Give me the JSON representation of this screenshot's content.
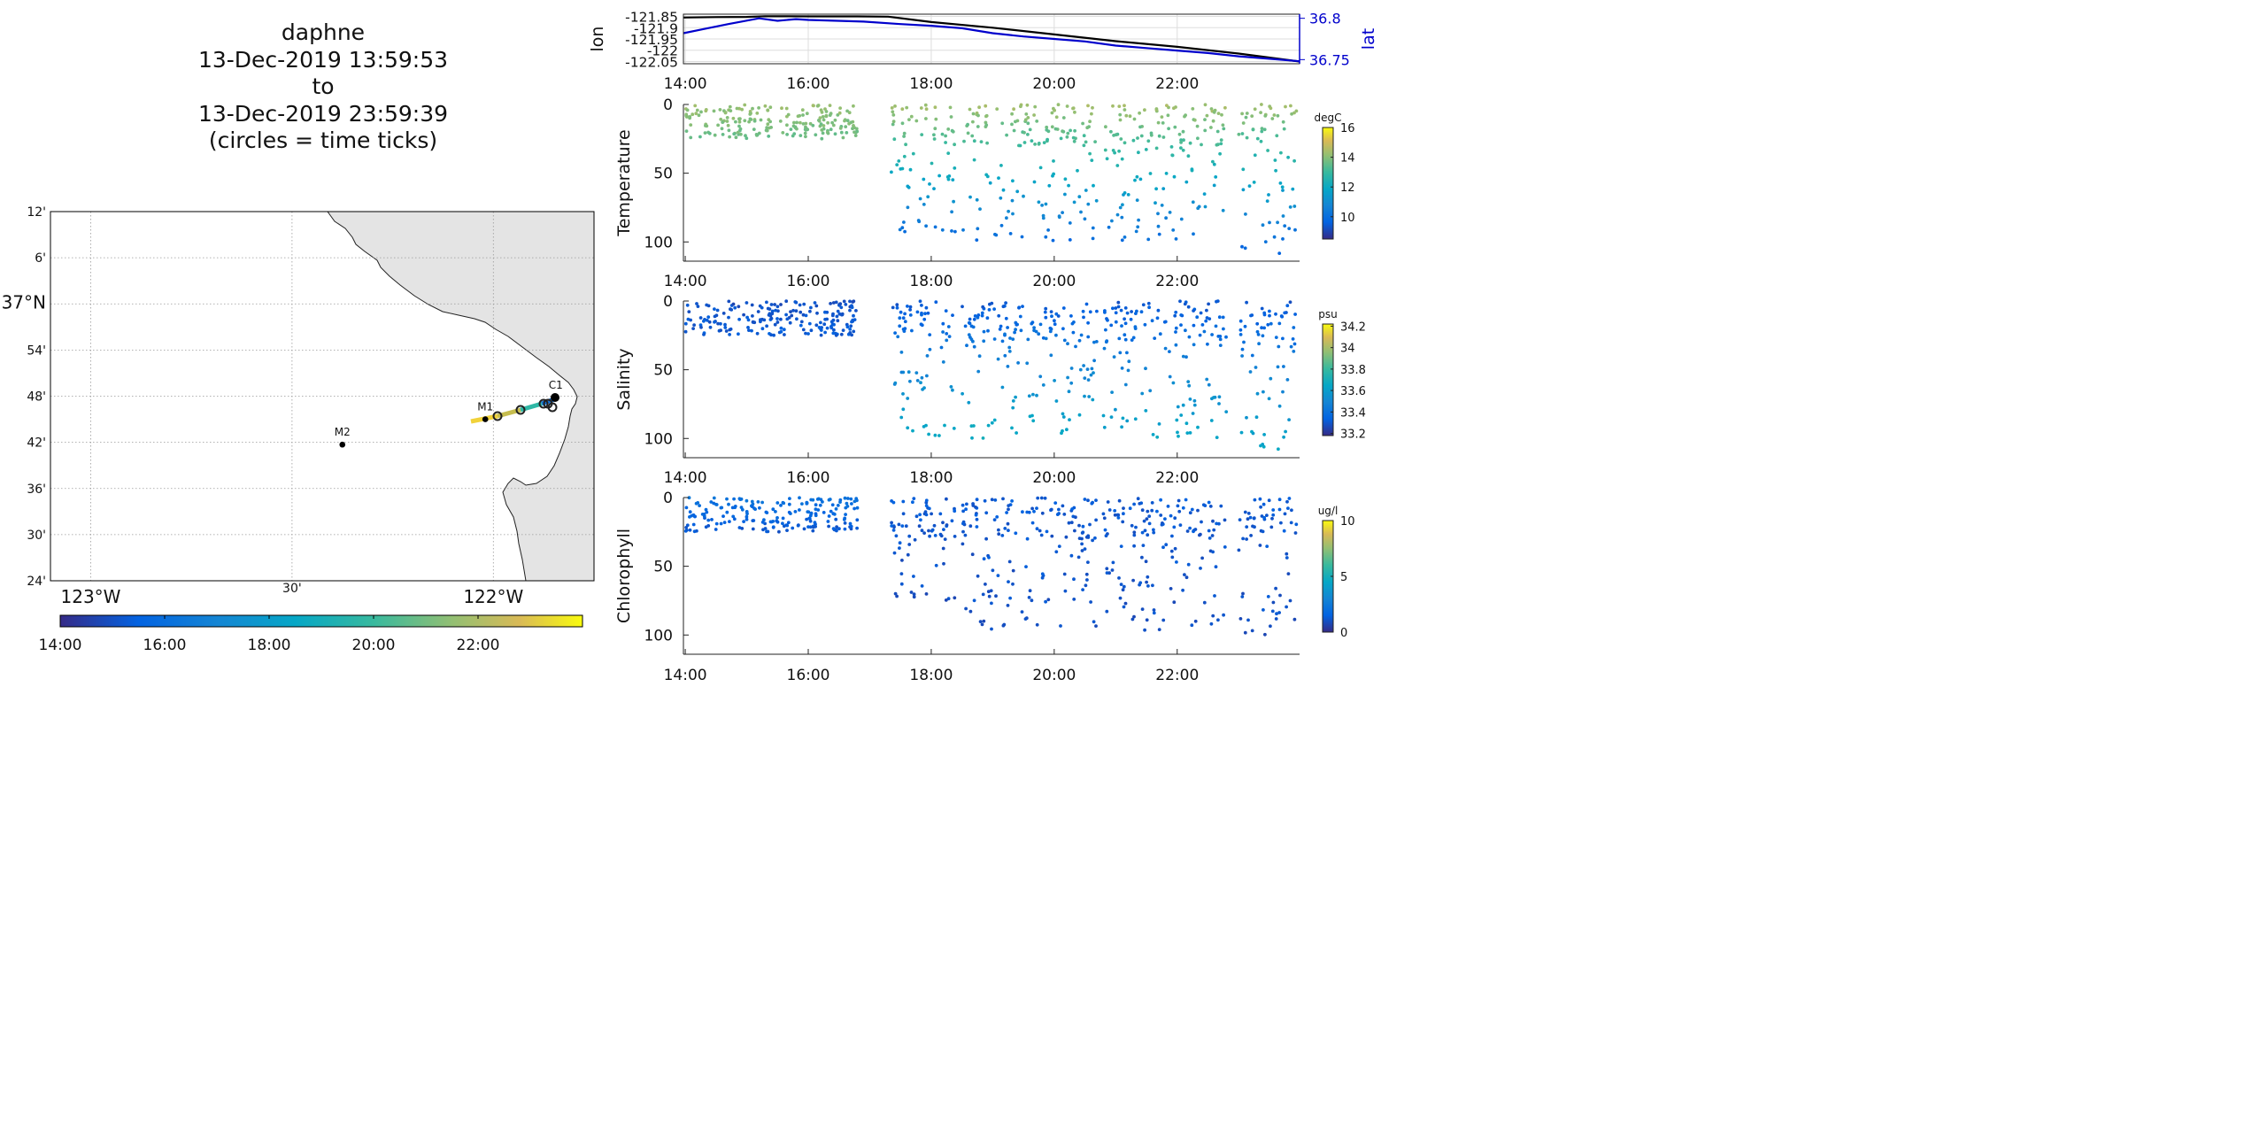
{
  "header": {
    "vehicle": "daphne",
    "start_time": "13-Dec-2019 13:59:53",
    "to_word": "to",
    "end_time": "13-Dec-2019 23:59:39",
    "note": "(circles = time ticks)"
  },
  "colors": {
    "land": "#e4e4e4",
    "lat_line": "#0000cc",
    "lon_line": "#000000",
    "grid": "#bbbbbb"
  },
  "map": {
    "lat_labels": [
      "12'",
      "6'",
      "37°N",
      "54'",
      "48'",
      "42'",
      "36'",
      "30'",
      "24'"
    ],
    "lat_values": [
      37.2,
      37.1,
      37.0,
      36.9,
      36.8,
      36.7,
      36.6,
      36.5,
      36.4
    ],
    "lon_labels": [
      "123°W",
      "30'",
      "122°W"
    ],
    "lon_values": [
      -123.0,
      -122.5,
      -122.0
    ],
    "lon_range": [
      -123.1,
      -121.75
    ],
    "lat_range": [
      36.4,
      37.2
    ],
    "moorings": [
      {
        "name": "M2",
        "lon": -122.375,
        "lat": 36.695
      },
      {
        "name": "M1",
        "lon": -122.02,
        "lat": 36.75
      },
      {
        "name": "C1",
        "lon": -121.845,
        "lat": 36.797
      }
    ],
    "time_colorbar_ticks": [
      "14:00",
      "16:00",
      "18:00",
      "20:00",
      "22:00"
    ]
  },
  "chart_data": [
    {
      "type": "line",
      "title": "",
      "xlabel": "",
      "x_ticks": [
        "14:00",
        "16:00",
        "18:00",
        "20:00",
        "22:00"
      ],
      "xlim": [
        13.97,
        23.99
      ],
      "y_left": {
        "label": "lon",
        "ticks": [
          "-121.85",
          "-121.9",
          "-121.95",
          "-122",
          "-122.05"
        ],
        "tick_values": [
          -121.85,
          -121.9,
          -121.95,
          -122.0,
          -122.05
        ],
        "lim": [
          -122.06,
          -121.84
        ]
      },
      "y_right": {
        "label": "lat",
        "ticks": [
          "36.8",
          "36.75"
        ],
        "tick_values": [
          36.8,
          36.75
        ],
        "lim": [
          36.745,
          36.805
        ]
      },
      "series": [
        {
          "name": "lon",
          "axis": "left",
          "color": "#000000",
          "x": [
            13.97,
            14.5,
            15.0,
            15.3,
            16.0,
            16.8,
            17.3,
            18.0,
            19.0,
            20.0,
            21.0,
            22.0,
            23.0,
            23.99
          ],
          "y": [
            -121.855,
            -121.853,
            -121.852,
            -121.849,
            -121.85,
            -121.85,
            -121.851,
            -121.875,
            -121.9,
            -121.93,
            -121.96,
            -121.985,
            -122.015,
            -122.05
          ]
        },
        {
          "name": "lat",
          "axis": "right",
          "color": "#0000cc",
          "x": [
            13.97,
            14.3,
            14.7,
            15.2,
            15.5,
            15.8,
            16.0,
            16.9,
            17.5,
            18.0,
            18.5,
            19.0,
            19.5,
            20.0,
            20.5,
            21.0,
            21.5,
            22.0,
            22.5,
            23.0,
            23.5,
            23.99
          ],
          "y": [
            36.782,
            36.787,
            36.793,
            36.8,
            36.797,
            36.799,
            36.798,
            36.796,
            36.793,
            36.791,
            36.788,
            36.782,
            36.778,
            36.775,
            36.772,
            36.767,
            36.764,
            36.761,
            36.758,
            36.754,
            36.751,
            36.748
          ]
        }
      ]
    },
    {
      "type": "scatter",
      "ylabel": "Temperature",
      "x_ticks": [
        "14:00",
        "16:00",
        "18:00",
        "20:00",
        "22:00"
      ],
      "xlim": [
        13.97,
        23.99
      ],
      "y_ticks": [
        0,
        50,
        100
      ],
      "ylim": [
        0,
        114
      ],
      "y_reversed": true,
      "colorbar": {
        "label": "degC",
        "ticks": [
          10,
          12,
          14,
          16
        ],
        "lim": [
          8.5,
          16
        ]
      },
      "segments": [
        {
          "x0": 14.0,
          "x1": 16.8,
          "top": 0,
          "bottom": 25,
          "vtop": 14.2,
          "vbottom": 13.6
        },
        {
          "x0": 17.35,
          "x1": 18.4,
          "top": 0,
          "bottom": 100,
          "vtop": 14.4,
          "vbottom": 9.8
        },
        {
          "x0": 18.5,
          "x1": 20.7,
          "top": 0,
          "bottom": 100,
          "vtop": 14.4,
          "vbottom": 9.8
        },
        {
          "x0": 20.8,
          "x1": 22.8,
          "top": 0,
          "bottom": 100,
          "vtop": 14.4,
          "vbottom": 9.9
        },
        {
          "x0": 23.0,
          "x1": 23.95,
          "top": 0,
          "bottom": 110,
          "vtop": 14.3,
          "vbottom": 9.5
        }
      ]
    },
    {
      "type": "scatter",
      "ylabel": "Salinity",
      "x_ticks": [
        "14:00",
        "16:00",
        "18:00",
        "20:00",
        "22:00"
      ],
      "xlim": [
        13.97,
        23.99
      ],
      "y_ticks": [
        0,
        50,
        100
      ],
      "ylim": [
        0,
        114
      ],
      "y_reversed": true,
      "colorbar": {
        "label": "psu",
        "ticks": [
          33.2,
          33.4,
          33.6,
          33.8,
          34,
          34.2
        ],
        "lim": [
          33.18,
          34.22
        ]
      },
      "segments": [
        {
          "x0": 14.0,
          "x1": 16.8,
          "top": 0,
          "bottom": 25,
          "vtop": 33.28,
          "vbottom": 33.32
        },
        {
          "x0": 17.35,
          "x1": 18.4,
          "top": 0,
          "bottom": 100,
          "vtop": 33.3,
          "vbottom": 33.68
        },
        {
          "x0": 18.5,
          "x1": 20.7,
          "top": 0,
          "bottom": 100,
          "vtop": 33.3,
          "vbottom": 33.68
        },
        {
          "x0": 20.8,
          "x1": 22.8,
          "top": 0,
          "bottom": 100,
          "vtop": 33.3,
          "vbottom": 33.66
        },
        {
          "x0": 23.0,
          "x1": 23.95,
          "top": 0,
          "bottom": 110,
          "vtop": 33.3,
          "vbottom": 33.66
        }
      ]
    },
    {
      "type": "scatter",
      "ylabel": "Chlorophyll",
      "x_ticks": [
        "14:00",
        "16:00",
        "18:00",
        "20:00",
        "22:00"
      ],
      "xlim": [
        13.97,
        23.99
      ],
      "y_ticks": [
        0,
        50,
        100
      ],
      "ylim": [
        0,
        114
      ],
      "y_reversed": true,
      "colorbar": {
        "label": "ug/l",
        "ticks": [
          0,
          5,
          10
        ],
        "lim": [
          0,
          10
        ]
      },
      "segments": [
        {
          "x0": 14.0,
          "x1": 16.8,
          "top": 0,
          "bottom": 25,
          "vtop": 2.2,
          "vbottom": 1.2
        },
        {
          "x0": 17.35,
          "x1": 18.4,
          "top": 0,
          "bottom": 75,
          "vtop": 1.3,
          "vbottom": 1.0
        },
        {
          "x0": 18.5,
          "x1": 20.7,
          "top": 0,
          "bottom": 98,
          "vtop": 1.3,
          "vbottom": 1.0
        },
        {
          "x0": 20.8,
          "x1": 22.8,
          "top": 0,
          "bottom": 98,
          "vtop": 1.3,
          "vbottom": 1.0
        },
        {
          "x0": 23.0,
          "x1": 23.95,
          "top": 0,
          "bottom": 105,
          "vtop": 1.3,
          "vbottom": 1.0
        }
      ]
    }
  ]
}
